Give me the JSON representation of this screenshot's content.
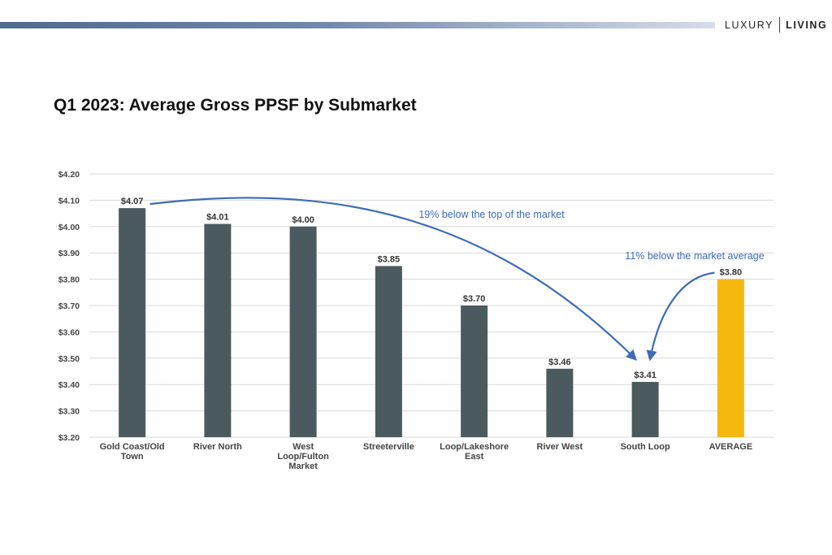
{
  "brand": {
    "part1": "LUXURY",
    "part2": "LIVING"
  },
  "colors": {
    "bar": "#4b5a5e",
    "highlight": "#f5b80f",
    "annotation": "#3d6bb8",
    "grid": "#d9d9d9"
  },
  "chart_data": {
    "type": "bar",
    "title": "Q1 2023: Average Gross PPSF by Submarket",
    "xlabel": "",
    "ylabel": "",
    "ylim": [
      3.2,
      4.2
    ],
    "yticks": [
      "$3.20",
      "$3.30",
      "$3.40",
      "$3.50",
      "$3.60",
      "$3.70",
      "$3.80",
      "$3.90",
      "$4.00",
      "$4.10",
      "$4.20"
    ],
    "grid": true,
    "categories": [
      [
        "Gold Coast/Old",
        "Town"
      ],
      [
        "River North"
      ],
      [
        "West",
        "Loop/Fulton",
        "Market"
      ],
      [
        "Streeterville"
      ],
      [
        "Loop/Lakeshore",
        "East"
      ],
      [
        "River West"
      ],
      [
        "South Loop"
      ],
      [
        "AVERAGE"
      ]
    ],
    "values": [
      4.07,
      4.01,
      4.0,
      3.85,
      3.7,
      3.46,
      3.41,
      3.8
    ],
    "data_labels": [
      "$4.07",
      "$4.01",
      "$4.00",
      "$3.85",
      "$3.70",
      "$3.46",
      "$3.41",
      "$3.80"
    ],
    "highlight_index": 7,
    "annotations": [
      {
        "text": "19% below the top of the market",
        "from_index": 0,
        "to_index": 6
      },
      {
        "text": "11% below the market average",
        "from_index": 7,
        "to_index": 6
      }
    ]
  }
}
